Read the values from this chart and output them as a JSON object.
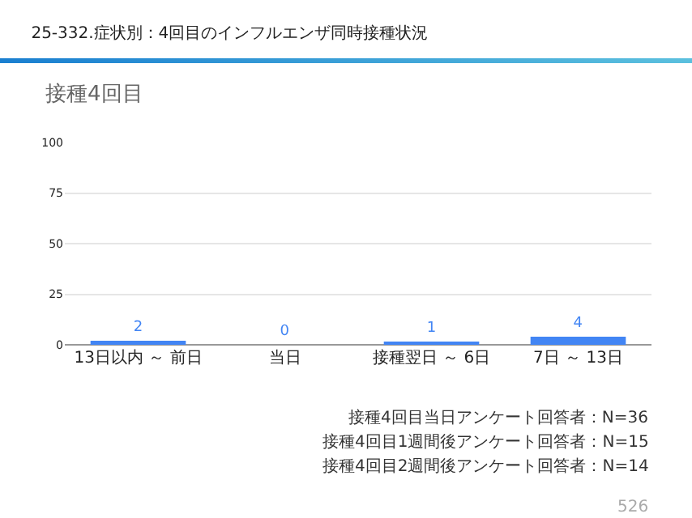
{
  "chart_data": {
    "type": "bar",
    "title": "25-332.症状別：4回目のインフルエンザ同時接種状況",
    "subtitle": "接種4回目",
    "categories": [
      "13日以内 ～ 前日",
      "当日",
      "接種翌日 ～ 6日",
      "7日 ～ 13日"
    ],
    "values": [
      2,
      0,
      1,
      4
    ],
    "color": "#4285f4",
    "data_labels": true,
    "ylim": [
      0,
      100
    ],
    "yticks": [
      0,
      25,
      50,
      75,
      100
    ],
    "grid": "y",
    "legend": false,
    "annotations": [
      "接種4回目当日アンケート回答者：N=36",
      "接種4回目1週間後アンケート回答者：N=15",
      "接種4回目2週間後アンケート回答者：N=14",
      "526"
    ]
  }
}
